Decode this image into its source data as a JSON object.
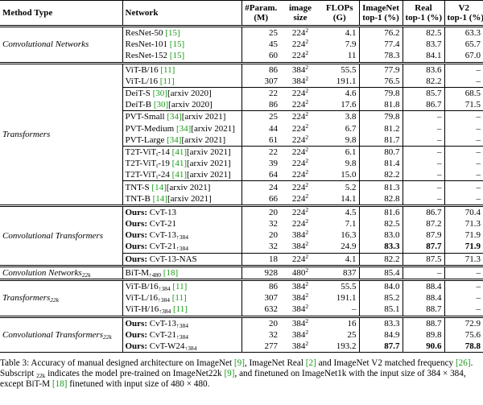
{
  "table": {
    "header": [
      [
        "Method Type"
      ],
      [
        "Network"
      ],
      [
        "#Param.",
        "(M)"
      ],
      [
        "image",
        "size"
      ],
      [
        "FLOPs",
        "(G)"
      ],
      [
        "ImageNet",
        "top-1 (%)"
      ],
      [
        "Real",
        "top-1 (%)"
      ],
      [
        "V2",
        "top-1 (%)"
      ]
    ],
    "groups": [
      {
        "type": {
          "name": "Convolutional Networks"
        },
        "blocks": [
          [
            {
              "network": {
                "name": "ResNet-50",
                "ref": "[15]"
              },
              "cells": [
                "25",
                {
                  "base": "224",
                  "exp": "2"
                },
                "4.1",
                "76.2",
                "82.5",
                "63.3"
              ]
            },
            {
              "network": {
                "name": "ResNet-101",
                "ref": "[15]"
              },
              "cells": [
                "45",
                {
                  "base": "224",
                  "exp": "2"
                },
                "7.9",
                "77.4",
                "83.7",
                "65.7"
              ]
            },
            {
              "network": {
                "name": "ResNet-152",
                "ref": "[15]"
              },
              "cells": [
                "60",
                {
                  "base": "224",
                  "exp": "2"
                },
                "11",
                "78.3",
                "84.1",
                "67.0"
              ]
            }
          ]
        ]
      },
      {
        "type": {
          "name": "Transformers"
        },
        "blocks": [
          [
            {
              "network": {
                "name": "ViT-B/16",
                "ref": "[11]"
              },
              "cells": [
                "86",
                {
                  "base": "384",
                  "exp": "2"
                },
                "55.5",
                "77.9",
                "83.6",
                "–"
              ]
            },
            {
              "network": {
                "name": "ViT-L/16",
                "ref": "[11]"
              },
              "cells": [
                "307",
                {
                  "base": "384",
                  "exp": "2"
                },
                "191.1",
                "76.5",
                "82.2",
                "–"
              ]
            }
          ],
          [
            {
              "network": {
                "name": "DeiT-S",
                "ref": "[30]",
                "note": "[arxiv 2020]"
              },
              "cells": [
                "22",
                {
                  "base": "224",
                  "exp": "2"
                },
                "4.6",
                "79.8",
                "85.7",
                "68.5"
              ]
            },
            {
              "network": {
                "name": "DeiT-B",
                "ref": "[30]",
                "note": "[arxiv 2020]"
              },
              "cells": [
                "86",
                {
                  "base": "224",
                  "exp": "2"
                },
                "17.6",
                "81.8",
                "86.7",
                "71.5"
              ]
            }
          ],
          [
            {
              "network": {
                "name": "PVT-Small",
                "ref": "[34]",
                "note": "[arxiv 2021]"
              },
              "cells": [
                "25",
                {
                  "base": "224",
                  "exp": "2"
                },
                "3.8",
                "79.8",
                "–",
                "–"
              ]
            },
            {
              "network": {
                "name": "PVT-Medium",
                "ref": "[34]",
                "note": "[arxiv 2021]"
              },
              "cells": [
                "44",
                {
                  "base": "224",
                  "exp": "2"
                },
                "6.7",
                "81.2",
                "–",
                "–"
              ]
            },
            {
              "network": {
                "name": "PVT-Large",
                "ref": "[34]",
                "note": "[arxiv 2021]"
              },
              "cells": [
                "61",
                {
                  "base": "224",
                  "exp": "2"
                },
                "9.8",
                "81.7",
                "–",
                "–"
              ]
            }
          ],
          [
            {
              "network": {
                "name": "T2T-ViT",
                "sub": "t",
                "suffix": "-14",
                "ref": "[41]",
                "note": "[arxiv 2021]"
              },
              "cells": [
                "22",
                {
                  "base": "224",
                  "exp": "2"
                },
                "6.1",
                "80.7",
                "–",
                "–"
              ]
            },
            {
              "network": {
                "name": "T2T-ViT",
                "sub": "t",
                "suffix": "-19",
                "ref": "[41]",
                "note": "[arxiv 2021]"
              },
              "cells": [
                "39",
                {
                  "base": "224",
                  "exp": "2"
                },
                "9.8",
                "81.4",
                "–",
                "–"
              ]
            },
            {
              "network": {
                "name": "T2T-ViT",
                "sub": "t",
                "suffix": "-24",
                "ref": "[41]",
                "note": "[arxiv 2021]"
              },
              "cells": [
                "64",
                {
                  "base": "224",
                  "exp": "2"
                },
                "15.0",
                "82.2",
                "–",
                "–"
              ]
            }
          ],
          [
            {
              "network": {
                "name": "TNT-S",
                "ref": "[14]",
                "note": "[arxiv 2021]"
              },
              "cells": [
                "24",
                {
                  "base": "224",
                  "exp": "2"
                },
                "5.2",
                "81.3",
                "–",
                "–"
              ]
            },
            {
              "network": {
                "name": "TNT-B",
                "ref": "[14]",
                "note": "[arxiv 2021]"
              },
              "cells": [
                "66",
                {
                  "base": "224",
                  "exp": "2"
                },
                "14.1",
                "82.8",
                "–",
                "–"
              ]
            }
          ]
        ]
      },
      {
        "type": {
          "name": "Convolutional Transformers"
        },
        "blocks": [
          [
            {
              "network": {
                "prefix": "Ours:",
                "name": "CvT-13"
              },
              "cells": [
                "20",
                {
                  "base": "224",
                  "exp": "2"
                },
                "4.5",
                "81.6",
                "86.7",
                "70.4"
              ]
            },
            {
              "network": {
                "prefix": "Ours:",
                "name": "CvT-21"
              },
              "cells": [
                "32",
                {
                  "base": "224",
                  "exp": "2"
                },
                "7.1",
                "82.5",
                "87.2",
                "71.3"
              ]
            },
            {
              "network": {
                "prefix": "Ours:",
                "name": "CvT-13",
                "sub": "↑384"
              },
              "cells": [
                "20",
                {
                  "base": "384",
                  "exp": "2"
                },
                "16.3",
                "83.0",
                "87.9",
                "71.9"
              ]
            },
            {
              "network": {
                "prefix": "Ours:",
                "name": "CvT-21",
                "sub": "↑384"
              },
              "cells": [
                "32",
                {
                  "base": "384",
                  "exp": "2"
                },
                "24.9",
                "83.3",
                "87.7",
                "71.9"
              ],
              "bold": [
                3,
                4,
                5
              ]
            }
          ],
          [
            {
              "network": {
                "prefix": "Ours:",
                "name": "CvT-13-NAS"
              },
              "cells": [
                "18",
                {
                  "base": "224",
                  "exp": "2"
                },
                "4.1",
                "82.2",
                "87.5",
                "71.3"
              ]
            }
          ]
        ]
      },
      {
        "type": {
          "name": "Convolution Networks",
          "sub": "22k"
        },
        "blocks": [
          [
            {
              "network": {
                "name": "BiT-M",
                "sub": "↑480",
                "ref": "[18]"
              },
              "cells": [
                "928",
                {
                  "base": "480",
                  "exp": "2"
                },
                "837",
                "85.4",
                "–",
                "–"
              ]
            }
          ]
        ]
      },
      {
        "type": {
          "name": "Transformers",
          "sub": "22k"
        },
        "blocks": [
          [
            {
              "network": {
                "name": "ViT-B/16",
                "sub": "↑384",
                "ref": "[11]"
              },
              "cells": [
                "86",
                {
                  "base": "384",
                  "exp": "2"
                },
                "55.5",
                "84.0",
                "88.4",
                "–"
              ]
            },
            {
              "network": {
                "name": "ViT-L/16",
                "sub": "↑384",
                "ref": "[11]"
              },
              "cells": [
                "307",
                {
                  "base": "384",
                  "exp": "2"
                },
                "191.1",
                "85.2",
                "88.4",
                "–"
              ]
            },
            {
              "network": {
                "name": "ViT-H/16",
                "sub": "↑384",
                "ref": "[11]"
              },
              "cells": [
                "632",
                {
                  "base": "384",
                  "exp": "2"
                },
                "–",
                "85.1",
                "88.7",
                "–"
              ]
            }
          ]
        ]
      },
      {
        "type": {
          "name": "Convolutional Transformers",
          "sub": "22k"
        },
        "blocks": [
          [
            {
              "network": {
                "prefix": "Ours:",
                "name": "CvT-13",
                "sub": "↑384"
              },
              "cells": [
                "20",
                {
                  "base": "384",
                  "exp": "2"
                },
                "16",
                "83.3",
                "88.7",
                "72.9"
              ]
            },
            {
              "network": {
                "prefix": "Ours:",
                "name": "CvT-21",
                "sub": "↑384"
              },
              "cells": [
                "32",
                {
                  "base": "384",
                  "exp": "2"
                },
                "25",
                "84.9",
                "89.8",
                "75.6"
              ]
            },
            {
              "network": {
                "prefix": "Ours:",
                "name": "CvT-W24",
                "sub": "↑384"
              },
              "cells": [
                "277",
                {
                  "base": "384",
                  "exp": "2"
                },
                "193.2",
                "87.7",
                "90.6",
                "78.8"
              ],
              "bold": [
                3,
                4,
                5
              ]
            }
          ]
        ]
      }
    ]
  },
  "caption": [
    {
      "text": "Table 3: Accuracy of manual designed architecture on ImageNet "
    },
    {
      "text": "[9]",
      "style": "ref"
    },
    {
      "text": ", ImageNet Real "
    },
    {
      "text": "[2]",
      "style": "ref"
    },
    {
      "text": " and ImageNet V2 matched frequency "
    },
    {
      "text": "[26]",
      "style": "ref"
    },
    {
      "text": ". Subscript "
    },
    {
      "text": "22k",
      "style": "sub"
    },
    {
      "text": " indicates the model pre-trained on ImageNet22k "
    },
    {
      "text": "[9]",
      "style": "ref"
    },
    {
      "text": ", and finetuned on ImageNet1k with the input size of 384 × 384, except BiT-M "
    },
    {
      "text": "[18]",
      "style": "ref"
    },
    {
      "text": " finetuned with input size of 480 × 480."
    }
  ]
}
